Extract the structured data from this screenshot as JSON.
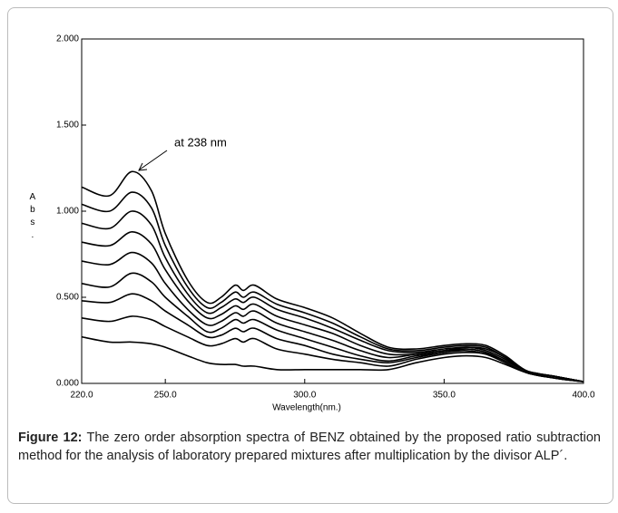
{
  "chart_data": {
    "type": "line",
    "x_label": "Wavelength(nm.)",
    "y_label": "Abs.",
    "annotation": "at 238 nm",
    "color": "#000000",
    "xlim": [
      220,
      400
    ],
    "ylim": [
      0,
      2
    ],
    "xticks": [
      {
        "value": 220,
        "label": "220.0"
      },
      {
        "value": 250,
        "label": "250.0"
      },
      {
        "value": 300,
        "label": "300.0"
      },
      {
        "value": 350,
        "label": "350.0"
      },
      {
        "value": 400,
        "label": "400.0"
      }
    ],
    "yticks": [
      {
        "value": 0,
        "label": "0.000"
      },
      {
        "value": 0.5,
        "label": "0.500"
      },
      {
        "value": 1,
        "label": "1.000"
      },
      {
        "value": 1.5,
        "label": "1.500"
      },
      {
        "value": 2,
        "label": "2.000"
      }
    ],
    "x": [
      220,
      230,
      238,
      245,
      250,
      258,
      265,
      270,
      275,
      278,
      282,
      290,
      300,
      310,
      320,
      330,
      340,
      350,
      358,
      365,
      372,
      380,
      390,
      400
    ],
    "series": [
      {
        "values": [
          1.14,
          1.09,
          1.23,
          1.12,
          0.87,
          0.6,
          0.47,
          0.5,
          0.57,
          0.54,
          0.57,
          0.49,
          0.44,
          0.38,
          0.29,
          0.21,
          0.2,
          0.22,
          0.23,
          0.22,
          0.16,
          0.07,
          0.04,
          0.01
        ]
      },
      {
        "values": [
          1.04,
          1.0,
          1.11,
          1.02,
          0.8,
          0.56,
          0.44,
          0.47,
          0.53,
          0.5,
          0.53,
          0.46,
          0.41,
          0.35,
          0.27,
          0.2,
          0.19,
          0.21,
          0.22,
          0.21,
          0.15,
          0.07,
          0.04,
          0.01
        ]
      },
      {
        "values": [
          0.93,
          0.9,
          1.0,
          0.92,
          0.73,
          0.52,
          0.41,
          0.44,
          0.49,
          0.47,
          0.5,
          0.43,
          0.38,
          0.32,
          0.25,
          0.19,
          0.18,
          0.2,
          0.21,
          0.2,
          0.15,
          0.07,
          0.04,
          0.01
        ]
      },
      {
        "values": [
          0.82,
          0.8,
          0.88,
          0.81,
          0.66,
          0.48,
          0.38,
          0.4,
          0.45,
          0.43,
          0.46,
          0.39,
          0.34,
          0.29,
          0.22,
          0.17,
          0.17,
          0.19,
          0.21,
          0.19,
          0.14,
          0.07,
          0.04,
          0.01
        ]
      },
      {
        "values": [
          0.71,
          0.69,
          0.76,
          0.7,
          0.58,
          0.43,
          0.34,
          0.36,
          0.41,
          0.39,
          0.42,
          0.35,
          0.3,
          0.25,
          0.19,
          0.15,
          0.17,
          0.19,
          0.2,
          0.18,
          0.13,
          0.07,
          0.04,
          0.01
        ]
      },
      {
        "values": [
          0.58,
          0.56,
          0.64,
          0.59,
          0.5,
          0.39,
          0.3,
          0.32,
          0.37,
          0.35,
          0.37,
          0.31,
          0.26,
          0.21,
          0.16,
          0.13,
          0.16,
          0.18,
          0.2,
          0.18,
          0.13,
          0.07,
          0.04,
          0.01
        ]
      },
      {
        "values": [
          0.48,
          0.47,
          0.52,
          0.48,
          0.42,
          0.34,
          0.27,
          0.28,
          0.32,
          0.3,
          0.32,
          0.26,
          0.22,
          0.17,
          0.14,
          0.12,
          0.15,
          0.18,
          0.19,
          0.17,
          0.12,
          0.06,
          0.03,
          0.01
        ]
      },
      {
        "values": [
          0.38,
          0.36,
          0.39,
          0.37,
          0.33,
          0.27,
          0.22,
          0.23,
          0.26,
          0.24,
          0.26,
          0.2,
          0.17,
          0.14,
          0.12,
          0.1,
          0.14,
          0.17,
          0.18,
          0.17,
          0.12,
          0.06,
          0.03,
          0.01
        ]
      },
      {
        "values": [
          0.27,
          0.24,
          0.24,
          0.23,
          0.21,
          0.16,
          0.12,
          0.11,
          0.11,
          0.1,
          0.1,
          0.08,
          0.08,
          0.08,
          0.08,
          0.08,
          0.12,
          0.15,
          0.16,
          0.15,
          0.11,
          0.06,
          0.03,
          0.01
        ]
      }
    ]
  },
  "caption": {
    "label": "Figure 12:",
    "text": " The zero order absorption spectra of BENZ obtained by the proposed ratio subtraction method for the analysis of laboratory prepared mixtures after multiplication by the divisor ALP´."
  }
}
